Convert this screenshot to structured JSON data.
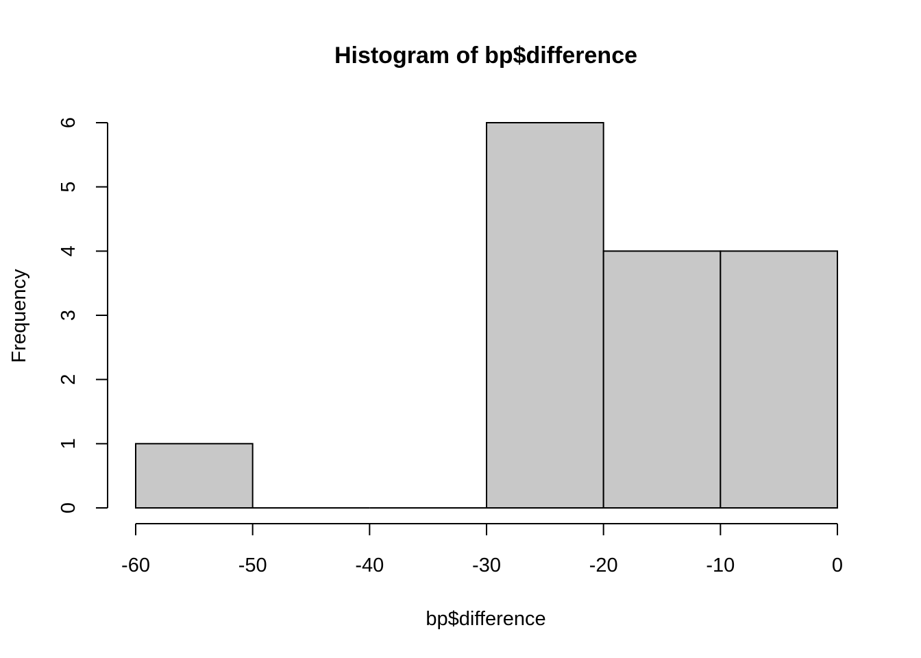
{
  "chart_data": {
    "type": "bar",
    "title": "Histogram of bp$difference",
    "xlabel": "bp$difference",
    "ylabel": "Frequency",
    "bins": [
      {
        "start": -60,
        "end": -50,
        "count": 1
      },
      {
        "start": -50,
        "end": -40,
        "count": 0
      },
      {
        "start": -40,
        "end": -30,
        "count": 0
      },
      {
        "start": -30,
        "end": -20,
        "count": 6
      },
      {
        "start": -20,
        "end": -10,
        "count": 4
      },
      {
        "start": -10,
        "end": 0,
        "count": 4
      }
    ],
    "xlim": [
      -60,
      0
    ],
    "ylim": [
      0,
      6
    ],
    "x_ticks": [
      -60,
      -50,
      -40,
      -30,
      -20,
      -10,
      0
    ],
    "x_tick_labels": [
      "-60",
      "-50",
      "-40",
      "-30",
      "-20",
      "-10",
      "0"
    ],
    "y_ticks": [
      0,
      1,
      2,
      3,
      4,
      5,
      6
    ],
    "y_tick_labels": [
      "0",
      "1",
      "2",
      "3",
      "4",
      "5",
      "6"
    ],
    "bar_color": "#c8c8c8",
    "grid": false
  }
}
